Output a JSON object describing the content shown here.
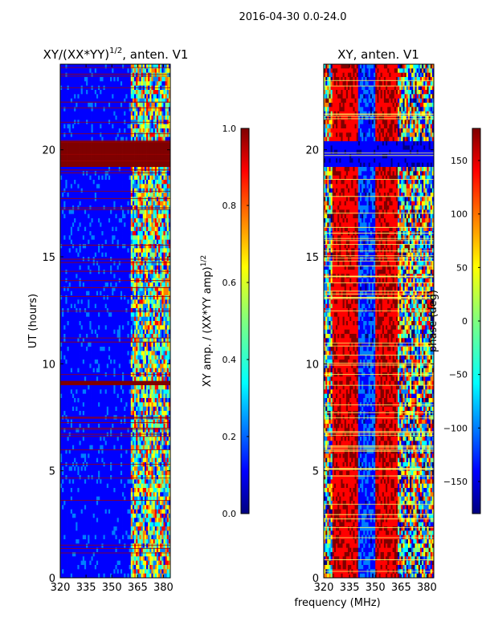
{
  "suptitle": "2016-04-30 0.0-24.0",
  "colors": {
    "jet": [
      "#00007f",
      "#0000ff",
      "#007fff",
      "#00ffff",
      "#7fff7f",
      "#ffff00",
      "#ff7f00",
      "#ff0000",
      "#7f0000"
    ],
    "flag_line": "#ffff66"
  },
  "chart_data": [
    {
      "type": "heatmap",
      "title": "XY/(XX*YY)",
      "title_sup": "1/2",
      "title_suffix": ", anten. V1",
      "xlabel": "frequency (MHz)",
      "ylabel": "UT (hours)",
      "x_ticks": [
        320,
        335,
        350,
        365,
        380
      ],
      "y_ticks": [
        0,
        5,
        10,
        15,
        20
      ],
      "xlim": [
        320,
        384
      ],
      "ylim": [
        0,
        24
      ],
      "colorbar": {
        "label": "XY amp. / (XX*YY amp)",
        "label_sup": "1/2",
        "ticks": [
          "0.0",
          "0.2",
          "0.4",
          "0.6",
          "0.8",
          "1.0"
        ],
        "range": [
          0,
          1
        ]
      },
      "band_start_mhz": 361,
      "saturated_blocks_hours": [
        [
          19.3,
          20.3
        ],
        [
          9.0,
          9.2
        ]
      ]
    },
    {
      "type": "heatmap",
      "title": "XY, anten. V1",
      "xlabel": "frequency (MHz)",
      "ylabel": "",
      "x_ticks": [
        320,
        335,
        350,
        365,
        380
      ],
      "y_ticks": [
        0,
        5,
        10,
        15,
        20
      ],
      "xlim": [
        320,
        384
      ],
      "ylim": [
        0,
        24
      ],
      "colorbar": {
        "label": "phase (deg)",
        "ticks": [
          "150",
          "100",
          "50",
          "0",
          "−50",
          "−100",
          "−150"
        ],
        "range": [
          -180,
          180
        ]
      },
      "low_phase_block_hours": [
        19.3,
        20.3
      ]
    }
  ]
}
